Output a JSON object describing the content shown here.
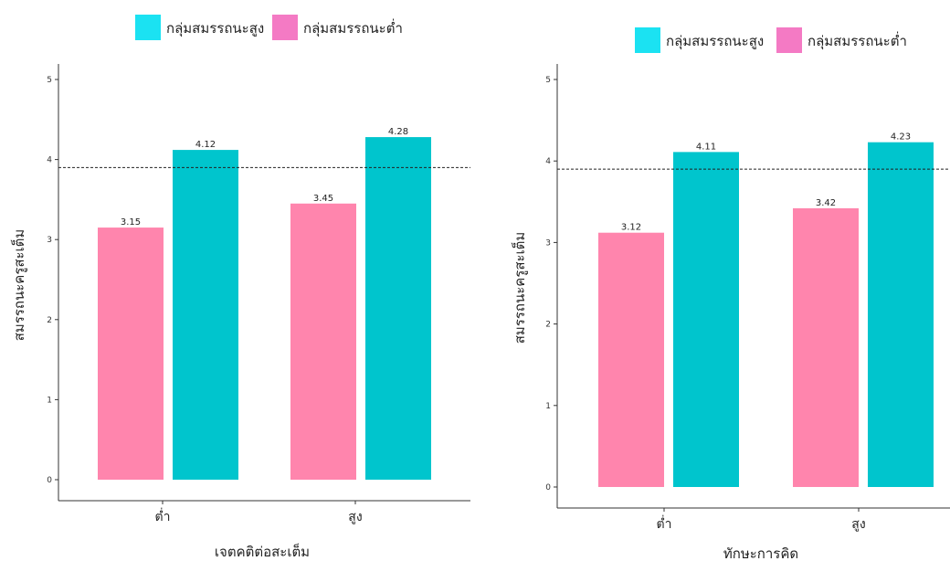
{
  "colors": {
    "high": "#00C5CD",
    "low": "#FF85AD",
    "legend_high": "#1BE2F2",
    "legend_low": "#F47AC4"
  },
  "chart_data": [
    {
      "type": "bar",
      "xlabel": "เจตคติต่อสะเต็ม",
      "ylabel": "สมรรถนะครูสะเต็ม",
      "ylim": [
        0,
        5
      ],
      "yticks": [
        0,
        1,
        2,
        3,
        4,
        5
      ],
      "categories": [
        "ต่ำ",
        "สูง"
      ],
      "reference_line": 3.9,
      "legend": [
        "กลุ่มสมรรถนะสูง",
        "กลุ่มสมรรถนะต่ำ"
      ],
      "series": [
        {
          "name": "กลุ่มสมรรถนะต่ำ",
          "values": [
            3.15,
            3.45
          ],
          "labels": [
            "3.15",
            "3.45"
          ]
        },
        {
          "name": "กลุ่มสมรรถนะสูง",
          "values": [
            4.12,
            4.28
          ],
          "labels": [
            "4.12",
            "4.28"
          ]
        }
      ]
    },
    {
      "type": "bar",
      "xlabel": "ทักษะการคิด",
      "ylabel": "สมรรถนะครูสะเต็ม",
      "ylim": [
        0,
        5
      ],
      "yticks": [
        0,
        1,
        2,
        3,
        4,
        5
      ],
      "categories": [
        "ต่ำ",
        "สูง"
      ],
      "reference_line": 3.9,
      "legend": [
        "กลุ่มสมรรถนะสูง",
        "กลุ่มสมรรถนะต่ำ"
      ],
      "series": [
        {
          "name": "กลุ่มสมรรถนะต่ำ",
          "values": [
            3.12,
            3.42
          ],
          "labels": [
            "3.12",
            "3.42"
          ]
        },
        {
          "name": "กลุ่มสมรรถนะสูง",
          "values": [
            4.11,
            4.23
          ],
          "labels": [
            "4.11",
            "4.23"
          ]
        }
      ]
    }
  ]
}
